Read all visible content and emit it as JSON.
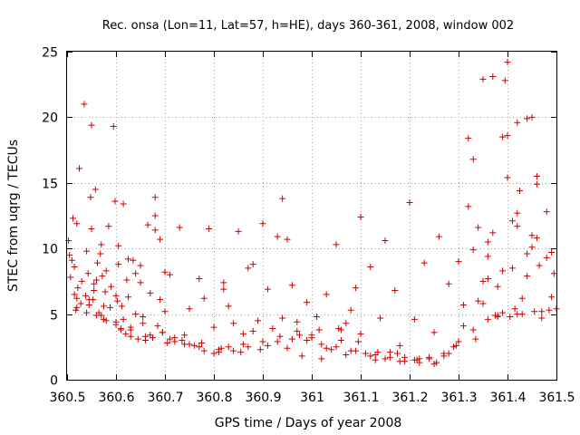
{
  "chart_data": {
    "type": "scatter",
    "title": "Rec. onsa (Lon=11, Lat=57, h=HE), days 360-361, 2008, window 002",
    "xlabel": "GPS time / Days of year 2008",
    "ylabel": "STEC from uqrg / TECUs",
    "xlim": [
      360.5,
      361.5
    ],
    "ylim": [
      0,
      25
    ],
    "x_ticks": [
      "360.5",
      "360.6",
      "360.7",
      "360.8",
      "360.9",
      "361",
      "361.1",
      "361.2",
      "361.3",
      "361.4",
      "361.5"
    ],
    "y_ticks": [
      "0",
      "5",
      "10",
      "15",
      "20",
      "25"
    ],
    "grid": true,
    "legend": "none",
    "marker": "plus",
    "color": "#cc0000",
    "series": [
      {
        "x": [
          360.503,
          360.505,
          360.507,
          360.512,
          360.515,
          360.518,
          360.52,
          360.522,
          360.525,
          360.528,
          360.53,
          360.535,
          360.538,
          360.54,
          360.543,
          360.545,
          360.548,
          360.55,
          360.553,
          360.555,
          360.558,
          360.56,
          360.562,
          360.565,
          360.568,
          360.57,
          360.572,
          360.575,
          360.578,
          360.58,
          360.585,
          360.588,
          360.59,
          360.595,
          360.598,
          360.6,
          360.603,
          360.605,
          360.61,
          360.612,
          360.615,
          360.62,
          360.622,
          360.625,
          360.63,
          360.635,
          360.64,
          360.645,
          360.65,
          360.655,
          360.66,
          360.665,
          360.67,
          360.675,
          360.68,
          360.685,
          360.69,
          360.695,
          360.7,
          360.705,
          360.71,
          360.72,
          360.73,
          360.74,
          360.75,
          360.76,
          360.77,
          360.78,
          360.79,
          360.8,
          360.81,
          360.82,
          360.83,
          360.84,
          360.85,
          360.86,
          360.87,
          360.88,
          360.89,
          360.9,
          360.91,
          360.92,
          360.93,
          360.94,
          360.95,
          360.96,
          360.97,
          360.98,
          360.99,
          361.0,
          361.01,
          361.02,
          361.03,
          361.04,
          361.05,
          361.06,
          361.07,
          361.08,
          361.09,
          361.1,
          361.11,
          361.12,
          361.13,
          361.14,
          361.15,
          361.16,
          361.17,
          361.18,
          361.19,
          361.2,
          361.21,
          361.22,
          361.23,
          361.24,
          361.25,
          361.26,
          361.27,
          361.28,
          361.29,
          361.3,
          361.31,
          361.32,
          361.33,
          361.34,
          361.35,
          361.36,
          361.37,
          361.38,
          361.39,
          361.4,
          361.41,
          361.42,
          361.43,
          361.44,
          361.45,
          361.46,
          361.47,
          361.48,
          361.49,
          361.5,
          360.51,
          360.52,
          360.55,
          360.555,
          360.56,
          360.605,
          360.625,
          360.68,
          360.68,
          360.65,
          360.58,
          360.6,
          360.61,
          360.63,
          360.64,
          360.66,
          360.69,
          360.7,
          360.72,
          360.75,
          360.78,
          360.8,
          360.83,
          360.86,
          360.9,
          360.94,
          360.97,
          361.0,
          361.03,
          361.06,
          361.08,
          361.1,
          361.13,
          361.16,
          361.19,
          361.22,
          361.25,
          361.28,
          361.31,
          361.33,
          361.35,
          361.36,
          361.37,
          361.38,
          361.39,
          361.4,
          361.41,
          361.42,
          361.44,
          361.46,
          361.32,
          361.34,
          361.35,
          361.36,
          361.38,
          361.395,
          361.4,
          361.405,
          361.42,
          361.425,
          361.43,
          361.44,
          361.45,
          361.46,
          361.47,
          361.48,
          361.49,
          361.495,
          361.45,
          361.465,
          360.52,
          360.54,
          360.57,
          360.6,
          360.63,
          360.67,
          360.71,
          360.74,
          360.77,
          360.81,
          360.84,
          360.87,
          360.91,
          360.93,
          360.96,
          360.99,
          361.02,
          361.05,
          361.09,
          361.12,
          361.15,
          361.18,
          361.21,
          361.24,
          361.27,
          361.3,
          361.33,
          361.36,
          361.39,
          361.42,
          360.515,
          360.545,
          360.575,
          360.615,
          360.655,
          360.695,
          360.735,
          360.775,
          360.815,
          360.855,
          360.895,
          360.935,
          360.975,
          361.015,
          361.055,
          361.095,
          361.135,
          361.175,
          361.215,
          361.255,
          361.295,
          361.335,
          361.375,
          361.415,
          361.455,
          361.485,
          360.82,
          360.88,
          360.95,
          361.07
        ],
        "y": [
          10.6,
          9.5,
          7.8,
          12.3,
          8.6,
          5.3,
          6.2,
          7.0,
          16.1,
          5.8,
          7.5,
          21.0,
          6.4,
          9.8,
          8.1,
          5.7,
          13.9,
          19.4,
          6.1,
          7.3,
          14.5,
          4.9,
          8.9,
          5.1,
          9.6,
          10.3,
          7.9,
          4.6,
          6.7,
          8.3,
          11.7,
          5.5,
          7.1,
          19.3,
          13.6,
          4.2,
          6.0,
          8.8,
          3.8,
          5.6,
          13.4,
          3.5,
          7.6,
          6.3,
          3.3,
          9.1,
          5.0,
          3.1,
          8.7,
          4.8,
          3.0,
          11.8,
          6.6,
          3.2,
          13.9,
          4.1,
          10.7,
          3.6,
          5.2,
          2.8,
          8.0,
          2.9,
          11.6,
          3.4,
          5.4,
          2.6,
          7.7,
          2.2,
          11.5,
          4.0,
          2.1,
          7.4,
          2.5,
          4.3,
          11.3,
          2.7,
          8.5,
          3.7,
          4.5,
          11.9,
          6.9,
          3.9,
          10.9,
          13.8,
          2.4,
          7.2,
          4.4,
          1.8,
          5.9,
          3.2,
          4.8,
          1.6,
          6.5,
          2.3,
          10.3,
          3.8,
          1.9,
          5.3,
          7.0,
          12.4,
          2.0,
          8.6,
          1.5,
          4.7,
          10.6,
          1.7,
          6.8,
          2.6,
          1.4,
          13.5,
          4.6,
          1.3,
          8.9,
          1.6,
          3.6,
          10.9,
          1.8,
          7.3,
          2.5,
          9.0,
          4.1,
          18.4,
          16.8,
          6.0,
          22.9,
          7.7,
          23.1,
          4.8,
          18.5,
          24.2,
          12.1,
          19.6,
          5.0,
          7.9,
          20.0,
          10.8,
          5.2,
          12.8,
          9.7,
          5.4,
          9.1,
          11.9,
          11.5,
          6.8,
          7.6,
          10.2,
          9.2,
          12.5,
          11.4,
          7.4,
          4.5,
          6.4,
          3.9,
          4.0,
          8.1,
          3.3,
          6.1,
          8.2,
          3.2,
          2.7,
          6.2,
          2.0,
          5.6,
          3.5,
          2.9,
          4.7,
          3.7,
          3.4,
          2.4,
          3.0,
          2.2,
          3.5,
          1.9,
          2.1,
          1.7,
          1.6,
          1.2,
          2.0,
          5.7,
          9.9,
          5.8,
          9.4,
          11.2,
          7.1,
          8.3,
          18.6,
          8.5,
          12.7,
          9.6,
          14.9,
          13.2,
          11.6,
          7.5,
          10.5,
          4.9,
          22.8,
          15.4,
          4.8,
          11.7,
          14.4,
          6.2,
          19.9,
          10.1,
          15.5,
          4.7,
          9.3,
          6.3,
          8.1,
          11.0,
          8.7,
          5.5,
          5.1,
          4.9,
          4.4,
          3.8,
          3.4,
          3.1,
          2.7,
          2.5,
          2.3,
          2.2,
          2.5,
          2.6,
          2.9,
          3.1,
          3.0,
          2.7,
          2.5,
          2.2,
          1.8,
          1.6,
          1.4,
          1.5,
          1.7,
          2.0,
          2.9,
          3.8,
          4.6,
          5.1,
          5.0,
          6.5,
          6.1,
          5.6,
          4.6,
          4.3,
          3.6,
          3.0,
          2.8,
          2.4,
          2.1,
          2.3,
          3.3,
          3.4,
          3.8,
          3.9,
          2.9,
          2.1,
          2.0,
          1.5,
          1.3,
          2.6,
          3.1,
          4.9,
          5.4,
          5.2,
          5.3,
          6.9,
          8.8,
          10.7,
          4.3
        ]
      }
    ]
  }
}
